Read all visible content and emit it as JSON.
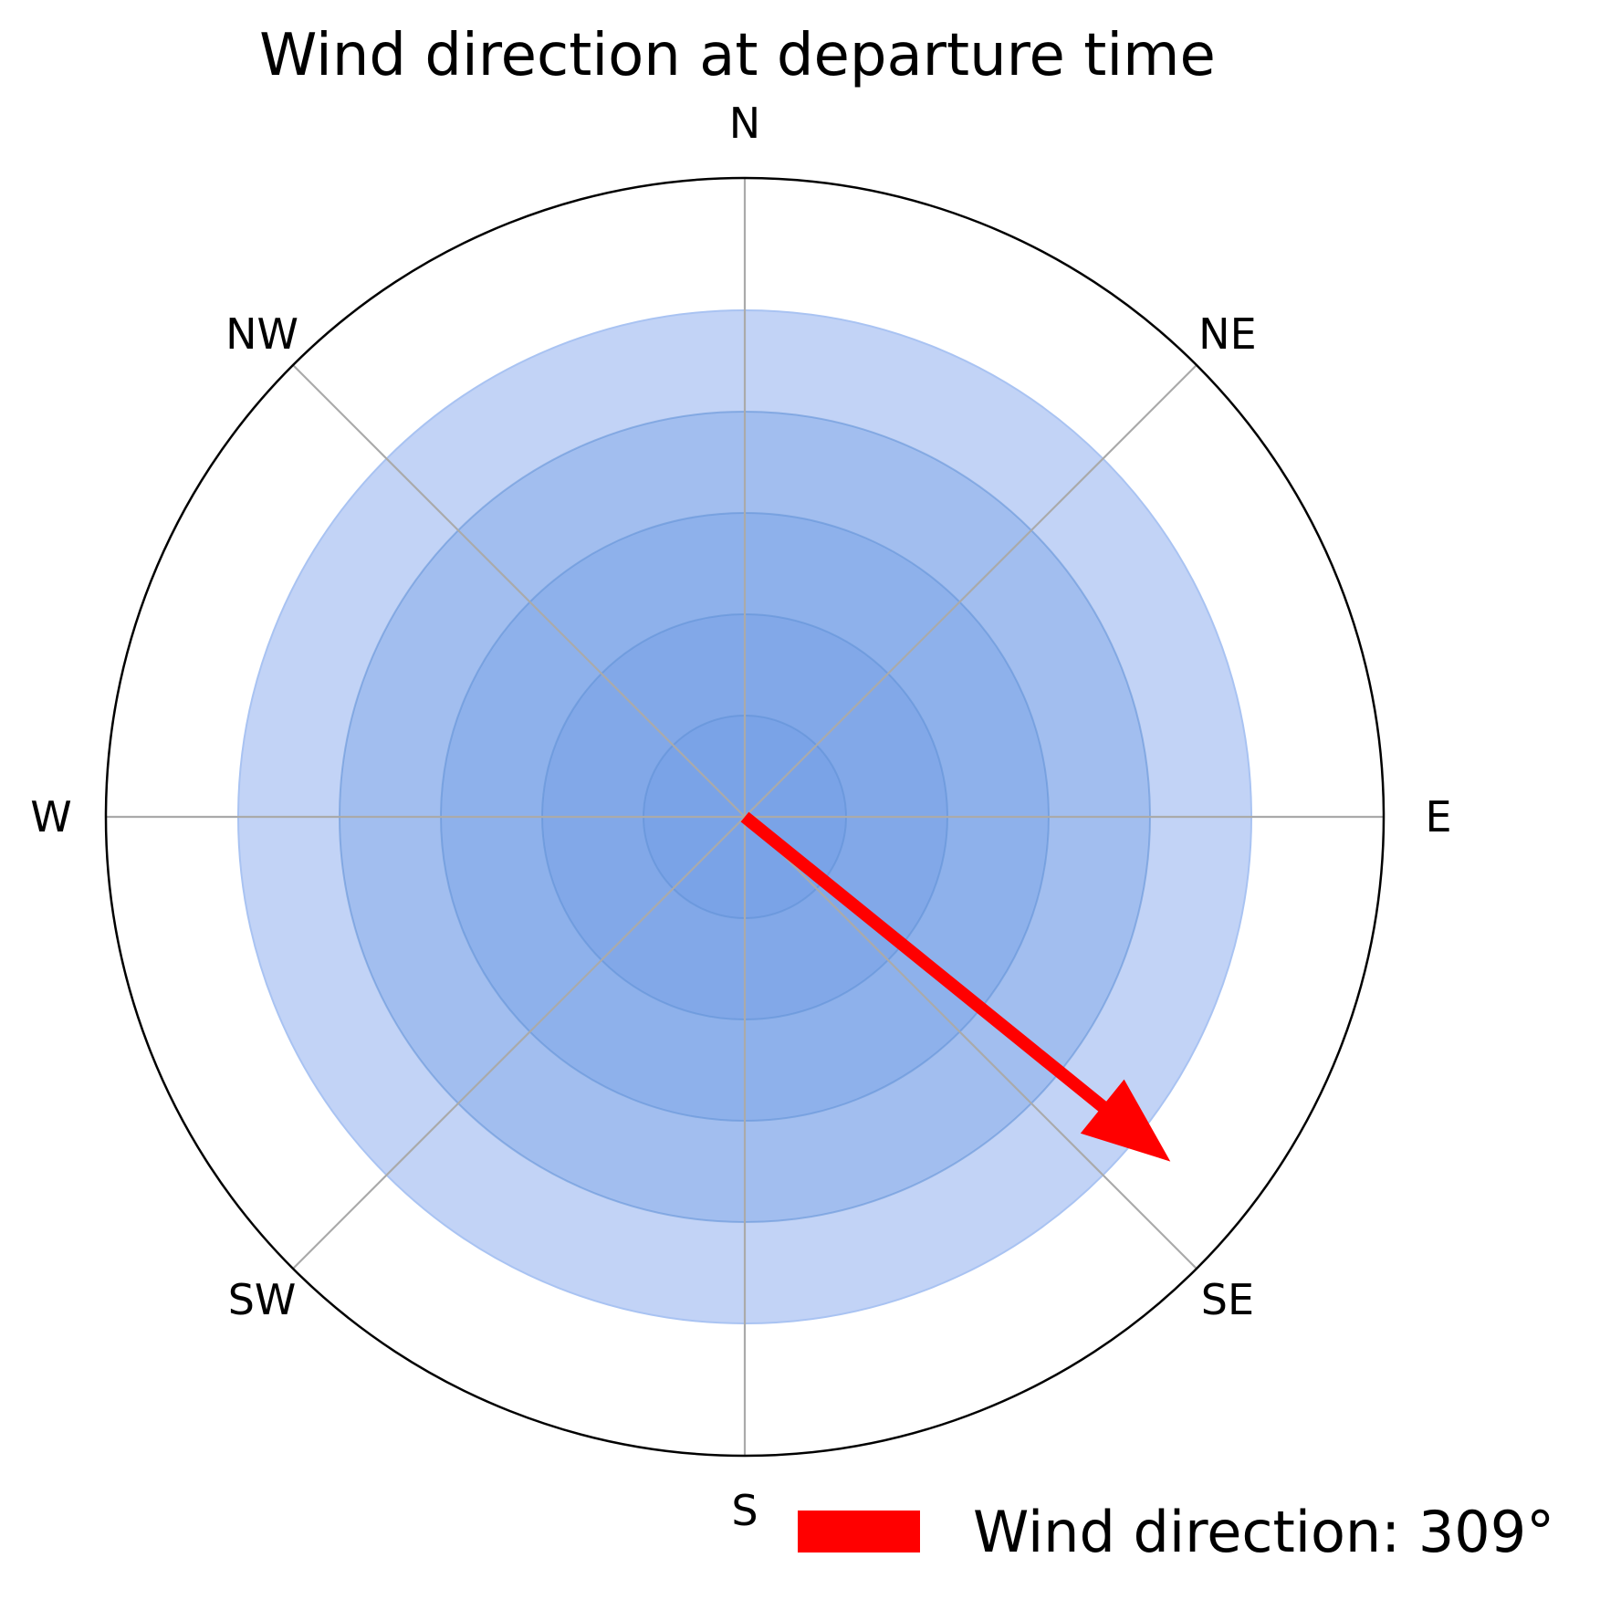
{
  "chart_data": {
    "type": "polar-arrow",
    "title": "Wind direction at departure time",
    "directions": [
      "N",
      "NE",
      "E",
      "SE",
      "S",
      "SW",
      "W",
      "NW"
    ],
    "rings": [
      5,
      4,
      3,
      2,
      1
    ],
    "wind_direction_deg": 309,
    "legend": {
      "label": "Wind direction: 309°"
    },
    "colors": {
      "arrow": "#ff0000",
      "ring_fill": "#6f9ce6",
      "outer_ring": "#c2d3f6",
      "grid": "#aaaaaa",
      "frame": "#000000"
    },
    "grid": true
  }
}
